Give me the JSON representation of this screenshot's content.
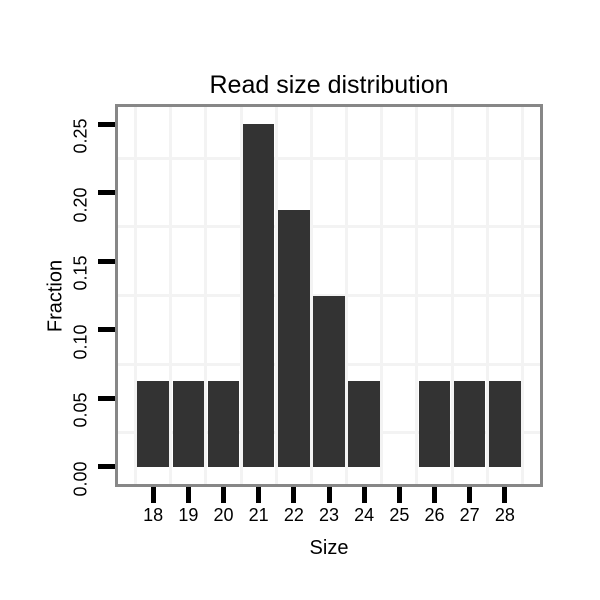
{
  "figure": {
    "background": "#ffffff"
  },
  "chart_data": {
    "type": "bar",
    "title": "Read size distribution",
    "xlabel": "Size",
    "ylabel": "Fraction",
    "categories": [
      18,
      19,
      20,
      21,
      22,
      23,
      24,
      25,
      26,
      27,
      28
    ],
    "values": [
      0.0625,
      0.0625,
      0.0625,
      0.25,
      0.1875,
      0.125,
      0.0625,
      0,
      0.0625,
      0.0625,
      0.0625
    ],
    "x_tick_labels": [
      "18",
      "19",
      "20",
      "21",
      "22",
      "23",
      "24",
      "25",
      "26",
      "27",
      "28"
    ],
    "y_tick_values": [
      0.0,
      0.05,
      0.1,
      0.15,
      0.2,
      0.25
    ],
    "y_tick_labels": [
      "0.00",
      "0.05",
      "0.10",
      "0.15",
      "0.20",
      "0.25"
    ],
    "xlim": [
      17,
      29
    ],
    "ylim": [
      -0.0125,
      0.2625
    ],
    "bar_width": 0.9,
    "grid": "minor-only",
    "x_minor_grid": [
      17.5,
      18.5,
      19.5,
      20.5,
      21.5,
      22.5,
      23.5,
      24.5,
      25.5,
      26.5,
      27.5,
      28.5
    ],
    "y_minor_grid": [
      0.025,
      0.075,
      0.125,
      0.175,
      0.225
    ],
    "legend": "none",
    "colors": {
      "bar": "#333333",
      "grid": "#f3f3f3",
      "panel_border": "#878787",
      "tick": "#000000",
      "text": "#000000",
      "panel_background": "#ffffff"
    }
  }
}
